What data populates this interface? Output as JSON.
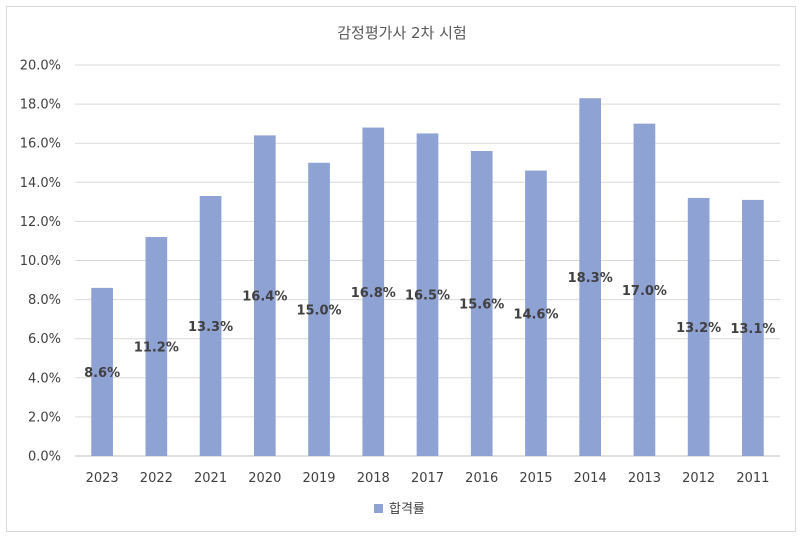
{
  "chart_data": {
    "type": "bar",
    "title": "감정평가사 2차 시험",
    "xlabel": "",
    "ylabel": "",
    "ylim": [
      0,
      0.2
    ],
    "y_tick_step": 0.02,
    "y_tick_format": "percent_1dp",
    "grid": true,
    "legend_position": "bottom",
    "bar_color": "#8fa2d4",
    "categories": [
      "2023",
      "2022",
      "2021",
      "2020",
      "2019",
      "2018",
      "2017",
      "2016",
      "2015",
      "2014",
      "2013",
      "2012",
      "2011"
    ],
    "series": [
      {
        "name": "합격률",
        "values": [
          0.086,
          0.112,
          0.133,
          0.164,
          0.15,
          0.168,
          0.165,
          0.156,
          0.146,
          0.183,
          0.17,
          0.132,
          0.131
        ],
        "data_labels": [
          "8.6%",
          "11.2%",
          "13.3%",
          "16.4%",
          "15.0%",
          "16.8%",
          "16.5%",
          "15.6%",
          "14.6%",
          "18.3%",
          "17.0%",
          "13.2%",
          "13.1%"
        ]
      }
    ]
  }
}
